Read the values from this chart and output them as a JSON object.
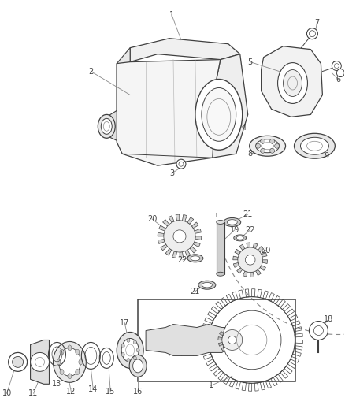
{
  "bg_color": "#ffffff",
  "line_color": "#404040",
  "gray": "#888888",
  "lgray": "#bbbbbb",
  "fig_width": 4.38,
  "fig_height": 5.33,
  "dpi": 100,
  "label_fontsize": 7.0,
  "label_color": "#444444"
}
